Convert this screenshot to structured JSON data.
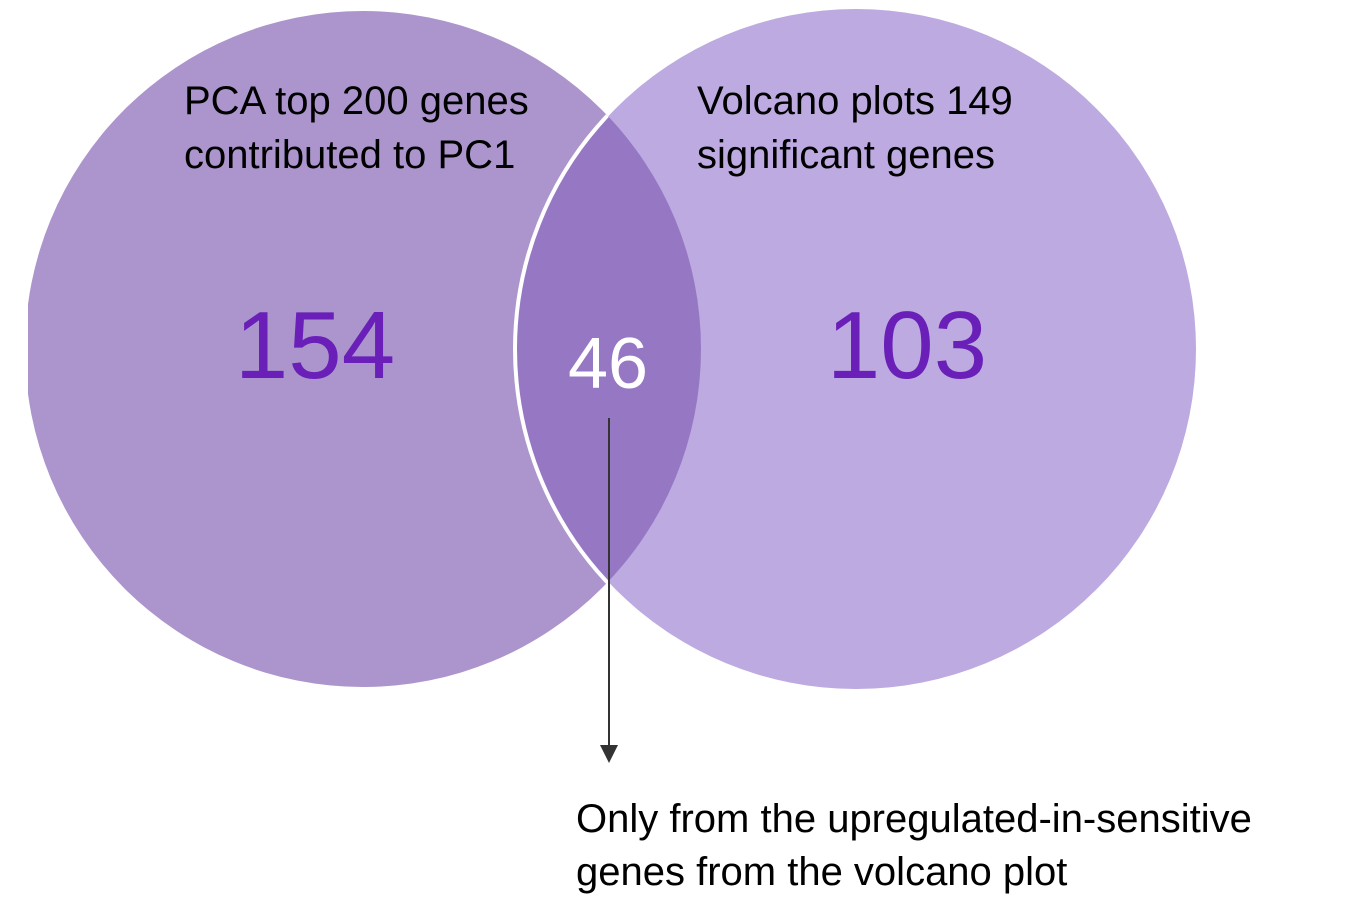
{
  "colors": {
    "left_circle": "#ab95cc",
    "right_circle": "#bcaae0",
    "intersection": "#9677c4",
    "count_text": "#6a1fb8",
    "intersection_text": "#ffffff",
    "arrow": "#333333"
  },
  "left_set": {
    "label_line1": "PCA top 200 genes",
    "label_line2": "contributed to PC1",
    "count": "154"
  },
  "right_set": {
    "label_line1": "Volcano plots 149",
    "label_line2": "significant genes",
    "count": "103"
  },
  "intersection": {
    "count": "46"
  },
  "annotation": {
    "line1": "Only from the upregulated-in-sensitive",
    "line2": "genes  from the volcano plot"
  }
}
